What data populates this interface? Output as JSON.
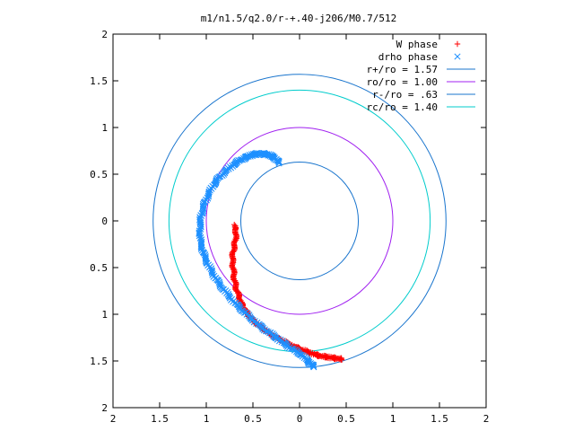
{
  "chart_data": {
    "type": "scatter",
    "title": "m1/n1.5/q2.0/r-+.40-j206/M0.7/512",
    "xlabel": "",
    "ylabel": "",
    "xlim": [
      -2,
      2
    ],
    "ylim": [
      -2,
      2
    ],
    "x_tick_values": [
      -2,
      -1.5,
      -1,
      -0.5,
      0,
      0.5,
      1,
      1.5,
      2
    ],
    "x_tick_labels": [
      "2",
      "1.5",
      "1",
      "0.5",
      "0",
      "0.5",
      "1",
      "1.5",
      "2"
    ],
    "y_tick_values": [
      2,
      1.5,
      1,
      0.5,
      0,
      -0.5,
      -1,
      -1.5,
      -2
    ],
    "y_tick_labels": [
      "2",
      "1.5",
      "1",
      "0.5",
      "0",
      "0.5",
      "1",
      "1.5",
      "2"
    ],
    "grid": false,
    "legend_position": "top-right",
    "series": [
      {
        "name": "W phase",
        "kind": "points",
        "marker": "+",
        "color": "#ff0000",
        "x": [
          -0.7,
          -0.68,
          -0.69,
          -0.71,
          -0.72,
          -0.71,
          -0.7,
          -0.68,
          -0.65,
          -0.62,
          -0.58,
          -0.53,
          -0.47,
          -0.4,
          -0.33,
          -0.25,
          -0.17,
          -0.09,
          0.0,
          0.08,
          0.16,
          0.24,
          0.31,
          0.38,
          0.45
        ],
        "y": [
          -0.05,
          -0.12,
          -0.22,
          -0.32,
          -0.42,
          -0.52,
          -0.62,
          -0.72,
          -0.81,
          -0.89,
          -0.96,
          -1.03,
          -1.09,
          -1.15,
          -1.2,
          -1.25,
          -1.29,
          -1.33,
          -1.37,
          -1.4,
          -1.43,
          -1.45,
          -1.46,
          -1.47,
          -1.48
        ]
      },
      {
        "name": "drho phase",
        "kind": "points",
        "marker": "x",
        "color": "#1e90ff",
        "x": [
          -0.22,
          -0.27,
          -0.34,
          -0.42,
          -0.5,
          -0.58,
          -0.67,
          -0.76,
          -0.85,
          -0.92,
          -0.98,
          -1.03,
          -1.06,
          -1.07,
          -1.06,
          -1.03,
          -0.98,
          -0.92,
          -0.85,
          -0.77,
          -0.68,
          -0.59,
          -0.49,
          -0.39,
          -0.28,
          -0.18,
          -0.08,
          0.03,
          0.1,
          0.15
        ],
        "y": [
          0.62,
          0.68,
          0.71,
          0.72,
          0.71,
          0.68,
          0.63,
          0.56,
          0.48,
          0.39,
          0.28,
          0.16,
          0.03,
          -0.1,
          -0.23,
          -0.35,
          -0.47,
          -0.58,
          -0.69,
          -0.79,
          -0.89,
          -0.98,
          -1.07,
          -1.15,
          -1.23,
          -1.3,
          -1.37,
          -1.44,
          -1.51,
          -1.56
        ]
      },
      {
        "name": "r+/ro = 1.57",
        "kind": "circle",
        "radius": 1.57,
        "color": "#1874cd"
      },
      {
        "name": "ro/ro = 1.00",
        "kind": "circle",
        "radius": 1.0,
        "color": "#a020f0"
      },
      {
        "name": "r-/ro = .63",
        "kind": "circle",
        "radius": 0.63,
        "color": "#1874cd"
      },
      {
        "name": "rc/ro = 1.40",
        "kind": "circle",
        "radius": 1.4,
        "color": "#00cccc"
      }
    ]
  }
}
